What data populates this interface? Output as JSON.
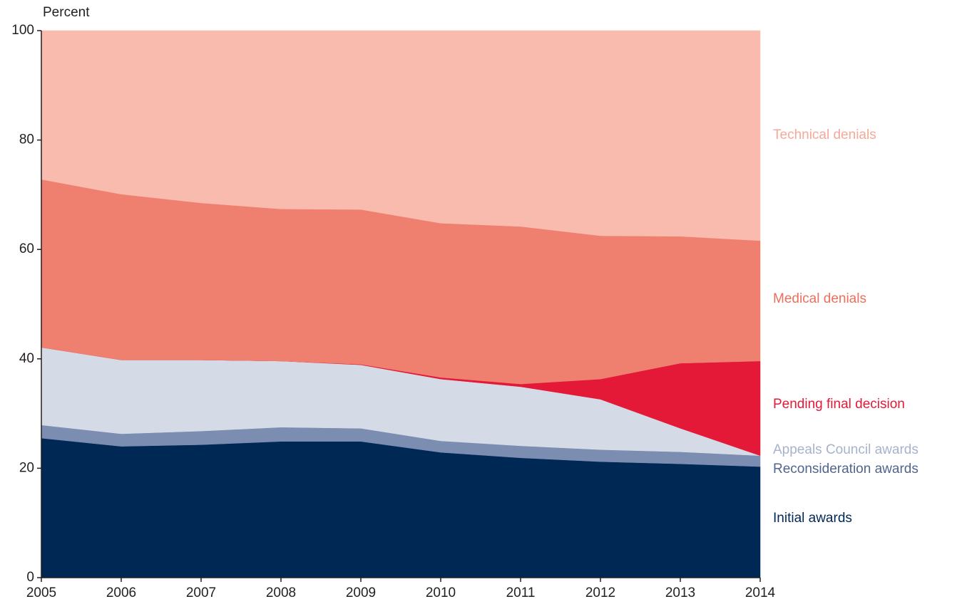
{
  "chart_data": {
    "type": "stacked_area",
    "y_axis_label": "Percent",
    "x": [
      2005,
      2006,
      2007,
      2008,
      2009,
      2010,
      2011,
      2012,
      2013,
      2014
    ],
    "xlim": [
      2005,
      2014
    ],
    "xticks": [
      2005,
      2006,
      2007,
      2008,
      2009,
      2010,
      2011,
      2012,
      2013,
      2014
    ],
    "ylim": [
      0,
      100
    ],
    "yticks": [
      0,
      20,
      40,
      60,
      80,
      100
    ],
    "series": [
      {
        "name": "Initial awards",
        "color": "#002855",
        "values": [
          25.5,
          24.0,
          24.3,
          24.9,
          24.9,
          22.9,
          21.9,
          21.2,
          20.8,
          20.3
        ]
      },
      {
        "name": "Reconsideration awards",
        "color": "#7b8db0",
        "values": [
          2.4,
          2.3,
          2.5,
          2.6,
          2.4,
          2.1,
          2.2,
          2.2,
          2.2,
          2.0
        ]
      },
      {
        "name": "Appeals Council awards",
        "color": "#d5dbe6",
        "values": [
          14.2,
          13.5,
          13.0,
          12.1,
          11.6,
          11.3,
          10.8,
          9.2,
          4.3,
          0
        ]
      },
      {
        "name": "Pending final decision",
        "color": "#e31937",
        "values": [
          0,
          0,
          0,
          0,
          0.1,
          0.3,
          0.5,
          3.7,
          11.9,
          17.3
        ]
      },
      {
        "name": "Medical denials",
        "color": "#ef8070",
        "values": [
          30.7,
          30.3,
          28.7,
          27.8,
          28.3,
          28.2,
          28.8,
          26.2,
          23.2,
          22.0
        ]
      },
      {
        "name": "Technical denials",
        "color": "#f8bbad",
        "values": [
          27.2,
          29.9,
          31.5,
          32.6,
          32.7,
          35.2,
          35.8,
          37.5,
          37.6,
          38.4
        ]
      }
    ]
  }
}
